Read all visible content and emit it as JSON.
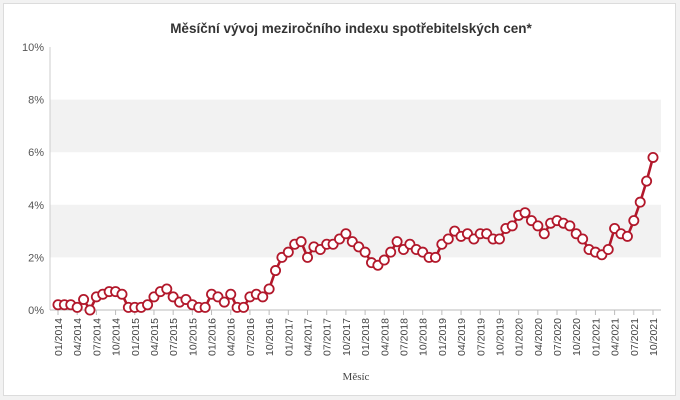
{
  "chart_data": {
    "type": "line",
    "title": "Měsíční vývoj meziročního indexu spotřebitelských cen*",
    "xlabel": "Měsíc",
    "ylabel": "",
    "ylim": [
      0,
      10
    ],
    "yticks": [
      "0%",
      "2%",
      "4%",
      "6%",
      "8%",
      "10%"
    ],
    "xticks": [
      "01/2014",
      "04/2014",
      "07/2014",
      "10/2014",
      "01/2015",
      "04/2015",
      "07/2015",
      "10/2015",
      "01/2016",
      "04/2016",
      "07/2016",
      "10/2016",
      "01/2017",
      "04/2017",
      "07/2017",
      "10/2017",
      "01/2018",
      "04/2018",
      "07/2018",
      "10/2018",
      "01/2019",
      "04/2019",
      "07/2019",
      "10/2019",
      "01/2020",
      "04/2020",
      "07/2020",
      "10/2020",
      "01/2021",
      "04/2021",
      "07/2021",
      "10/2021"
    ],
    "grid": "alternating horizontal bands",
    "legend": "none",
    "colors": {
      "line": "#b2182b",
      "marker_fill": "#ffffff",
      "band": "#f2f2f2"
    },
    "x": [
      "01/2014",
      "02/2014",
      "03/2014",
      "04/2014",
      "05/2014",
      "06/2014",
      "07/2014",
      "08/2014",
      "09/2014",
      "10/2014",
      "11/2014",
      "12/2014",
      "01/2015",
      "02/2015",
      "03/2015",
      "04/2015",
      "05/2015",
      "06/2015",
      "07/2015",
      "08/2015",
      "09/2015",
      "10/2015",
      "11/2015",
      "12/2015",
      "01/2016",
      "02/2016",
      "03/2016",
      "04/2016",
      "05/2016",
      "06/2016",
      "07/2016",
      "08/2016",
      "09/2016",
      "10/2016",
      "11/2016",
      "12/2016",
      "01/2017",
      "02/2017",
      "03/2017",
      "04/2017",
      "05/2017",
      "06/2017",
      "07/2017",
      "08/2017",
      "09/2017",
      "10/2017",
      "11/2017",
      "12/2017",
      "01/2018",
      "02/2018",
      "03/2018",
      "04/2018",
      "05/2018",
      "06/2018",
      "07/2018",
      "08/2018",
      "09/2018",
      "10/2018",
      "11/2018",
      "12/2018",
      "01/2019",
      "02/2019",
      "03/2019",
      "04/2019",
      "05/2019",
      "06/2019",
      "07/2019",
      "08/2019",
      "09/2019",
      "10/2019",
      "11/2019",
      "12/2019",
      "01/2020",
      "02/2020",
      "03/2020",
      "04/2020",
      "05/2020",
      "06/2020",
      "07/2020",
      "08/2020",
      "09/2020",
      "10/2020",
      "11/2020",
      "12/2020",
      "01/2021",
      "02/2021",
      "03/2021",
      "04/2021",
      "05/2021",
      "06/2021",
      "07/2021",
      "08/2021",
      "09/2021",
      "10/2021"
    ],
    "series": [
      {
        "values": [
          0.2,
          0.2,
          0.2,
          0.1,
          0.4,
          0.0,
          0.5,
          0.6,
          0.7,
          0.7,
          0.6,
          0.1,
          0.1,
          0.1,
          0.2,
          0.5,
          0.7,
          0.8,
          0.5,
          0.3,
          0.4,
          0.2,
          0.1,
          0.1,
          0.6,
          0.5,
          0.3,
          0.6,
          0.1,
          0.1,
          0.5,
          0.6,
          0.5,
          0.8,
          1.5,
          2.0,
          2.2,
          2.5,
          2.6,
          2.0,
          2.4,
          2.3,
          2.5,
          2.5,
          2.7,
          2.9,
          2.6,
          2.4,
          2.2,
          1.8,
          1.7,
          1.9,
          2.2,
          2.6,
          2.3,
          2.5,
          2.3,
          2.2,
          2.0,
          2.0,
          2.5,
          2.7,
          3.0,
          2.8,
          2.9,
          2.7,
          2.9,
          2.9,
          2.7,
          2.7,
          3.1,
          3.2,
          3.6,
          3.7,
          3.4,
          3.2,
          2.9,
          3.3,
          3.4,
          3.3,
          3.2,
          2.9,
          2.7,
          2.3,
          2.2,
          2.1,
          2.3,
          3.1,
          2.9,
          2.8,
          3.4,
          4.1,
          4.9,
          5.8
        ]
      }
    ]
  }
}
